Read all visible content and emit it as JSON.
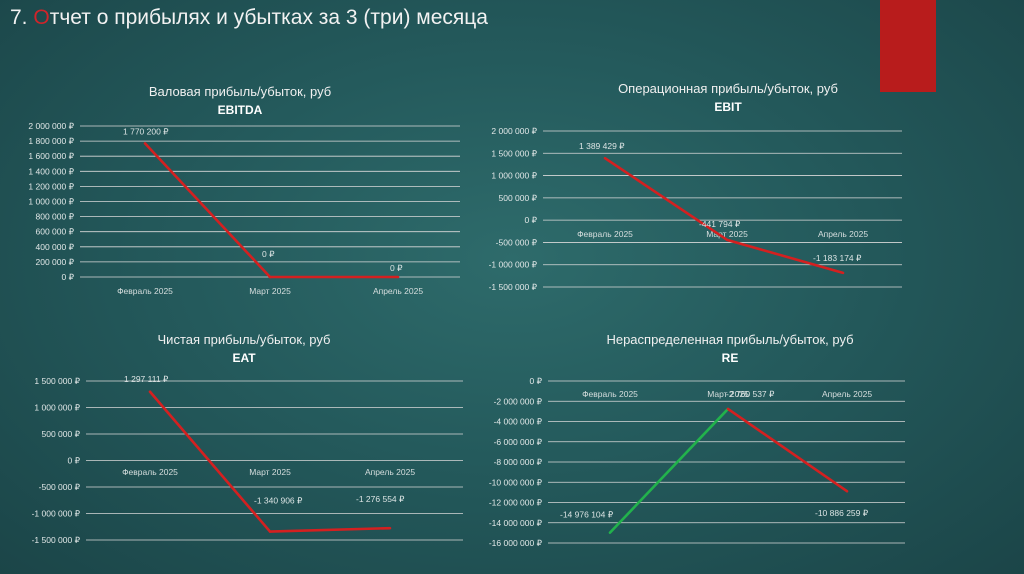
{
  "slide": {
    "title_num": "7. ",
    "title_first": "О",
    "title_rest": "тчет о прибылях и убытках за 3 (три) месяца",
    "accent_color": "#d0242a",
    "bar_color": "#b81c1c"
  },
  "chart_data": [
    {
      "type": "line",
      "title": "Валовая прибыль/убыток, руб",
      "subtitle": "EBITDA",
      "categories": [
        "Февраль 2025",
        "Март 2025",
        "Апрель 2025"
      ],
      "series": [
        {
          "values": [
            1770200,
            0,
            0
          ],
          "color": "#d42020"
        }
      ],
      "data_labels": [
        "1 770 200 ₽",
        "0 ₽",
        "0 ₽"
      ],
      "yticks": [
        2000000,
        1800000,
        1600000,
        1400000,
        1200000,
        1000000,
        800000,
        600000,
        400000,
        200000,
        0
      ],
      "ytick_labels": [
        "2 000 000 ₽",
        "1 800 000 ₽",
        "1 600 000 ₽",
        "1 400 000 ₽",
        "1 200 000 ₽",
        "1 000 000 ₽",
        "800 000 ₽",
        "600 000 ₽",
        "400 000 ₽",
        "200 000 ₽",
        "0 ₽"
      ],
      "ylim": [
        0,
        2000000
      ],
      "grid": true
    },
    {
      "type": "line",
      "title": "Операционная прибыль/убыток, руб",
      "subtitle": "EBIT",
      "categories": [
        "Февраль 2025",
        "Март 2025",
        "Апрель 2025"
      ],
      "series": [
        {
          "values": [
            1389429,
            -441794,
            -1183174
          ],
          "color": "#d42020"
        }
      ],
      "data_labels": [
        "1 389 429 ₽",
        "-441 794 ₽",
        "-1 183 174 ₽"
      ],
      "yticks": [
        2000000,
        1500000,
        1000000,
        500000,
        0,
        -500000,
        -1000000,
        -1500000
      ],
      "ytick_labels": [
        "2 000 000 ₽",
        "1 500 000 ₽",
        "1 000 000 ₽",
        "500 000 ₽",
        "0 ₽",
        "-500 000 ₽",
        "-1 000 000 ₽",
        "-1 500 000 ₽"
      ],
      "ylim": [
        -1500000,
        2000000
      ],
      "grid": true
    },
    {
      "type": "line",
      "title": "Чистая прибыль/убыток, руб",
      "subtitle": "EAT",
      "categories": [
        "Февраль 2025",
        "Март 2025",
        "Апрель 2025"
      ],
      "series": [
        {
          "values": [
            1297111,
            -1340906,
            -1276554
          ],
          "color": "#d42020"
        }
      ],
      "data_labels": [
        "1 297 111 ₽",
        "-1 340 906 ₽",
        "-1 276 554 ₽"
      ],
      "yticks": [
        1500000,
        1000000,
        500000,
        0,
        -500000,
        -1000000,
        -1500000
      ],
      "ytick_labels": [
        "1 500 000 ₽",
        "1 000 000 ₽",
        "500 000 ₽",
        "0 ₽",
        "-500 000 ₽",
        "-1 000 000 ₽",
        "-1 500 000 ₽"
      ],
      "ylim": [
        -1500000,
        1500000
      ],
      "grid": true
    },
    {
      "type": "line",
      "title": "Нераспределенная прибыль/убыток, руб",
      "subtitle": "RE",
      "categories": [
        "Февраль 2025",
        "Март 2025",
        "Апрель 2025"
      ],
      "series": [
        {
          "values": [
            -14976104,
            -2760537,
            -10886259
          ],
          "colors": [
            "#22b24c",
            "#d42020"
          ]
        }
      ],
      "data_labels": [
        "-14 976 104 ₽",
        "-2 760 537 ₽",
        "-10 886 259 ₽"
      ],
      "yticks": [
        0,
        -2000000,
        -4000000,
        -6000000,
        -8000000,
        -10000000,
        -12000000,
        -14000000,
        -16000000
      ],
      "ytick_labels": [
        "0 ₽",
        "-2 000 000 ₽",
        "-4 000 000 ₽",
        "-6 000 000 ₽",
        "-8 000 000 ₽",
        "-10 000 000 ₽",
        "-12 000 000 ₽",
        "-14 000 000 ₽",
        "-16 000 000 ₽"
      ],
      "ylim": [
        -16000000,
        0
      ],
      "grid": true
    }
  ]
}
